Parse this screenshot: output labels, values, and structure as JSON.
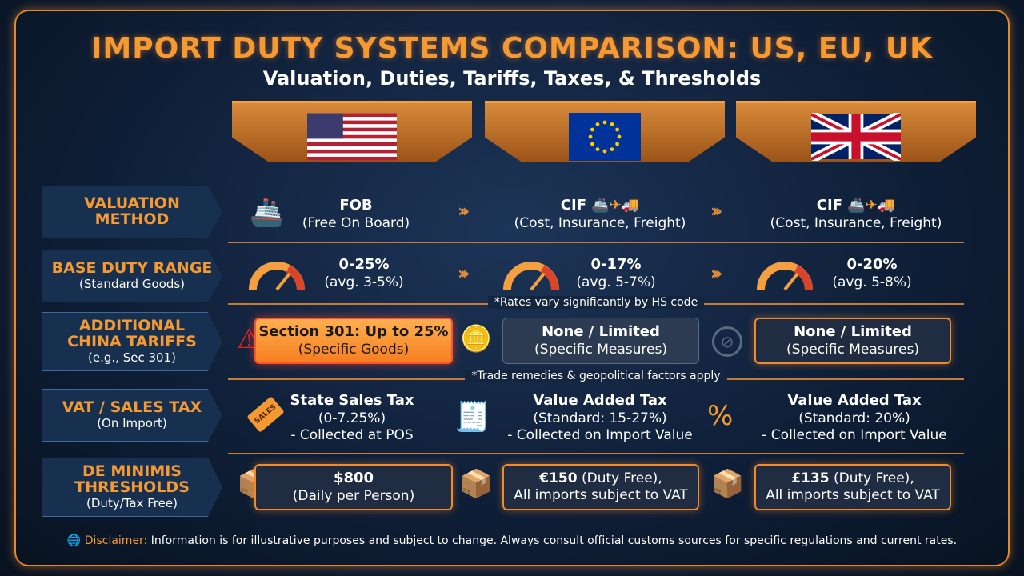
{
  "header": {
    "title": "IMPORT DUTY SYSTEMS COMPARISON: US, EU, UK",
    "subtitle": "Valuation, Duties, Tariffs, Taxes, & Thresholds"
  },
  "columns": [
    {
      "region": "US",
      "flag": "us-flag"
    },
    {
      "region": "EU",
      "flag": "eu-flag"
    },
    {
      "region": "UK",
      "flag": "uk-flag"
    }
  ],
  "rows": {
    "valuation": {
      "label": "VALUATION METHOD",
      "us": {
        "title": "FOB",
        "sub": "(Free On Board)"
      },
      "eu": {
        "title": "CIF",
        "sub": "(Cost, Insurance, Freight)"
      },
      "uk": {
        "title": "CIF",
        "sub": "(Cost, Insurance, Freight)"
      }
    },
    "base": {
      "label": "BASE DUTY RANGE",
      "sublabel": "(Standard Goods)",
      "us": {
        "title": "0-25%",
        "sub": "(avg. 3-5%)"
      },
      "eu": {
        "title": "0-17%",
        "sub": "(avg. 5-7%)"
      },
      "uk": {
        "title": "0-20%",
        "sub": "(avg. 5-8%)"
      },
      "note": "*Rates vary significantly by HS code"
    },
    "china": {
      "label": "ADDITIONAL CHINA TARIFFS",
      "sublabel": "(e.g., Sec 301)",
      "us": {
        "title": "Section 301: Up to 25%",
        "sub": "(Specific Goods)"
      },
      "eu": {
        "title": "None / Limited",
        "sub": "(Specific Measures)"
      },
      "uk": {
        "title": "None / Limited",
        "sub": "(Specific Measures)"
      },
      "note": "*Trade remedies & geopolitical factors apply"
    },
    "vat": {
      "label": "VAT / SALES TAX",
      "sublabel": "(On Import)",
      "us": {
        "title": "State Sales Tax",
        "l1": "(0-7.25%)",
        "l2": "- Collected at POS",
        "tag": "SALES"
      },
      "eu": {
        "title": "Value Added Tax",
        "l1": "(Standard: 15-27%)",
        "l2": "- Collected on Import Value"
      },
      "uk": {
        "title": "Value Added Tax",
        "l1": "(Standard: 20%)",
        "l2": "- Collected on Import Value"
      }
    },
    "deminimis": {
      "label": "DE MINIMIS THRESHOLDS",
      "sublabel": "(Duty/Tax Free)",
      "us": {
        "title": "$800",
        "sub": "(Daily per Person)"
      },
      "eu": {
        "title": "€150",
        "rest": " (Duty Free),",
        "sub": "All imports subject to VAT"
      },
      "uk": {
        "title": "£135",
        "rest": " (Duty Free),",
        "sub": "All imports subject to VAT"
      }
    }
  },
  "footer": {
    "label": "Disclaimer:",
    "text": " Information is for illustrative purposes and subject to change. Always consult official customs sources for specific regulations and current rates."
  },
  "colors": {
    "accent": "#f59a32",
    "background": "#0f1f38",
    "alert": "#ff5030"
  }
}
